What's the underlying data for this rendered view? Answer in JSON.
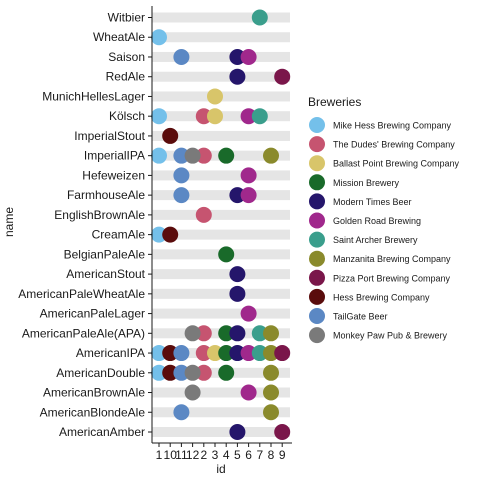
{
  "chart_data": {
    "type": "scatter",
    "xlabel": "id",
    "ylabel": "name",
    "x_tick_labels": [
      "1",
      "10",
      "11",
      "12",
      "2",
      "3",
      "4",
      "5",
      "6",
      "7",
      "8",
      "9"
    ],
    "y_categories": [
      "AmericanAmber",
      "AmericanBlondeAle",
      "AmericanBrownAle",
      "AmericanDouble",
      "AmericanIPA",
      "AmericanPaleAle(APA)",
      "AmericanPaleLager",
      "AmericanPaleWheatAle",
      "AmericanStout",
      "BelgianPaleAle",
      "CreamAle",
      "EnglishBrownAle",
      "FarmhouseAle",
      "Hefeweizen",
      "ImperialIPA",
      "ImperialStout",
      "Kölsch",
      "MunichHellesLager",
      "RedAle",
      "Saison",
      "WheatAle",
      "Witbier"
    ],
    "band_color": "#e5e5e5",
    "legend": {
      "title": "Breweries",
      "placement": "right"
    },
    "series": [
      {
        "name": "Mike Hess Brewing Company",
        "color": "#74c0ea",
        "points": [
          {
            "x": "1",
            "y": "WheatAle"
          },
          {
            "x": "1",
            "y": "Kölsch"
          },
          {
            "x": "1",
            "y": "ImperialIPA"
          },
          {
            "x": "1",
            "y": "CreamAle"
          },
          {
            "x": "1",
            "y": "AmericanIPA"
          },
          {
            "x": "1",
            "y": "AmericanDouble"
          }
        ]
      },
      {
        "name": "The Dudes' Brewing Company",
        "color": "#c65470",
        "points": [
          {
            "x": "2",
            "y": "Kölsch"
          },
          {
            "x": "2",
            "y": "ImperialIPA"
          },
          {
            "x": "2",
            "y": "EnglishBrownAle"
          },
          {
            "x": "2",
            "y": "AmericanPaleAle(APA)"
          },
          {
            "x": "2",
            "y": "AmericanIPA"
          },
          {
            "x": "2",
            "y": "AmericanDouble"
          }
        ]
      },
      {
        "name": "Ballast Point Brewing Company",
        "color": "#d8c56a",
        "points": [
          {
            "x": "3",
            "y": "MunichHellesLager"
          },
          {
            "x": "3",
            "y": "Kölsch"
          },
          {
            "x": "3",
            "y": "AmericanIPA"
          }
        ]
      },
      {
        "name": "Mission Brewery",
        "color": "#196a2a",
        "points": [
          {
            "x": "4",
            "y": "ImperialIPA"
          },
          {
            "x": "4",
            "y": "BelgianPaleAle"
          },
          {
            "x": "4",
            "y": "AmericanPaleAle(APA)"
          },
          {
            "x": "4",
            "y": "AmericanIPA"
          },
          {
            "x": "4",
            "y": "AmericanDouble"
          }
        ]
      },
      {
        "name": "Modern Times Beer",
        "color": "#25166b",
        "points": [
          {
            "x": "5",
            "y": "Saison"
          },
          {
            "x": "5",
            "y": "RedAle"
          },
          {
            "x": "5",
            "y": "FarmhouseAle"
          },
          {
            "x": "5",
            "y": "AmericanStout"
          },
          {
            "x": "5",
            "y": "AmericanPaleWheatAle"
          },
          {
            "x": "5",
            "y": "AmericanPaleAle(APA)"
          },
          {
            "x": "5",
            "y": "AmericanIPA"
          },
          {
            "x": "5",
            "y": "AmericanAmber"
          }
        ]
      },
      {
        "name": "Golden Road Brewing",
        "color": "#a0288c",
        "points": [
          {
            "x": "6",
            "y": "Saison"
          },
          {
            "x": "6",
            "y": "Kölsch"
          },
          {
            "x": "6",
            "y": "Hefeweizen"
          },
          {
            "x": "6",
            "y": "FarmhouseAle"
          },
          {
            "x": "6",
            "y": "AmericanPaleLager"
          },
          {
            "x": "6",
            "y": "AmericanIPA"
          },
          {
            "x": "6",
            "y": "AmericanBrownAle"
          }
        ]
      },
      {
        "name": "Saint Archer Brewery",
        "color": "#3a9e8c",
        "points": [
          {
            "x": "7",
            "y": "Witbier"
          },
          {
            "x": "7",
            "y": "Kölsch"
          },
          {
            "x": "7",
            "y": "AmericanPaleAle(APA)"
          },
          {
            "x": "7",
            "y": "AmericanIPA"
          }
        ]
      },
      {
        "name": "Manzanita Brewing Company",
        "color": "#8a8a2c",
        "points": [
          {
            "x": "8",
            "y": "ImperialIPA"
          },
          {
            "x": "8",
            "y": "AmericanPaleAle(APA)"
          },
          {
            "x": "8",
            "y": "AmericanIPA"
          },
          {
            "x": "8",
            "y": "AmericanDouble"
          },
          {
            "x": "8",
            "y": "AmericanBrownAle"
          },
          {
            "x": "8",
            "y": "AmericanBlondeAle"
          }
        ]
      },
      {
        "name": "Pizza Port Brewing Company",
        "color": "#7a164a",
        "points": [
          {
            "x": "9",
            "y": "RedAle"
          },
          {
            "x": "9",
            "y": "AmericanIPA"
          },
          {
            "x": "9",
            "y": "AmericanAmber"
          }
        ]
      },
      {
        "name": "Hess Brewing Company",
        "color": "#5a0c0c",
        "points": [
          {
            "x": "10",
            "y": "ImperialStout"
          },
          {
            "x": "10",
            "y": "CreamAle"
          },
          {
            "x": "10",
            "y": "AmericanIPA"
          },
          {
            "x": "10",
            "y": "AmericanDouble"
          }
        ]
      },
      {
        "name": "TailGate Beer",
        "color": "#5b88c4",
        "points": [
          {
            "x": "11",
            "y": "Saison"
          },
          {
            "x": "11",
            "y": "ImperialIPA"
          },
          {
            "x": "11",
            "y": "Hefeweizen"
          },
          {
            "x": "11",
            "y": "FarmhouseAle"
          },
          {
            "x": "11",
            "y": "AmericanIPA"
          },
          {
            "x": "11",
            "y": "AmericanDouble"
          },
          {
            "x": "11",
            "y": "AmericanBlondeAle"
          }
        ]
      },
      {
        "name": "Monkey Paw Pub & Brewery",
        "color": "#7a7a7a",
        "points": [
          {
            "x": "12",
            "y": "ImperialIPA"
          },
          {
            "x": "12",
            "y": "AmericanPaleAle(APA)"
          },
          {
            "x": "12",
            "y": "AmericanDouble"
          },
          {
            "x": "12",
            "y": "AmericanBrownAle"
          }
        ]
      }
    ]
  }
}
